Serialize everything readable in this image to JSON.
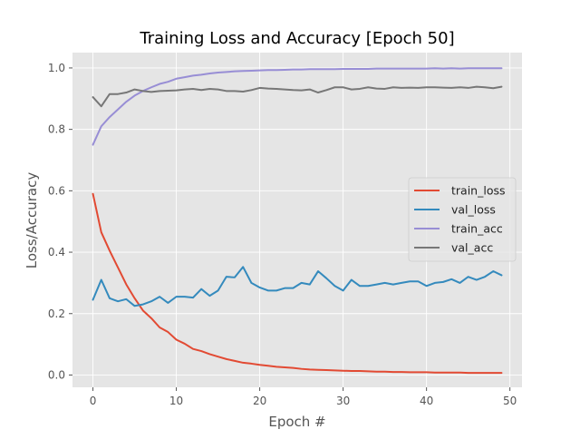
{
  "chart_data": {
    "type": "line",
    "title": "Training Loss and Accuracy [Epoch 50]",
    "xlabel": "Epoch #",
    "ylabel": "Loss/Accuracy",
    "xlim": [
      -2.45,
      51.45
    ],
    "ylim": [
      -0.04,
      1.05
    ],
    "xticks": [
      0,
      10,
      20,
      30,
      40,
      50
    ],
    "xtick_labels": [
      "0",
      "10",
      "20",
      "30",
      "40",
      "50"
    ],
    "yticks": [
      0.0,
      0.2,
      0.4,
      0.6,
      0.8,
      1.0
    ],
    "ytick_labels": [
      "0.0",
      "0.2",
      "0.4",
      "0.6",
      "0.8",
      "1.0"
    ],
    "grid": true,
    "legend_position": "center-right",
    "x": [
      0,
      1,
      2,
      3,
      4,
      5,
      6,
      7,
      8,
      9,
      10,
      11,
      12,
      13,
      14,
      15,
      16,
      17,
      18,
      19,
      20,
      21,
      22,
      23,
      24,
      25,
      26,
      27,
      28,
      29,
      30,
      31,
      32,
      33,
      34,
      35,
      36,
      37,
      38,
      39,
      40,
      41,
      42,
      43,
      44,
      45,
      46,
      47,
      48,
      49
    ],
    "series": [
      {
        "name": "train_loss",
        "color": "#E24A33",
        "values": [
          0.59,
          0.465,
          0.405,
          0.35,
          0.295,
          0.25,
          0.21,
          0.185,
          0.155,
          0.14,
          0.115,
          0.102,
          0.085,
          0.078,
          0.068,
          0.06,
          0.052,
          0.046,
          0.04,
          0.037,
          0.033,
          0.03,
          0.027,
          0.025,
          0.023,
          0.02,
          0.018,
          0.017,
          0.016,
          0.015,
          0.014,
          0.013,
          0.013,
          0.012,
          0.011,
          0.011,
          0.01,
          0.01,
          0.009,
          0.009,
          0.009,
          0.008,
          0.008,
          0.008,
          0.008,
          0.007,
          0.007,
          0.007,
          0.007,
          0.007
        ]
      },
      {
        "name": "val_loss",
        "color": "#348ABD",
        "values": [
          0.245,
          0.31,
          0.25,
          0.24,
          0.247,
          0.225,
          0.23,
          0.24,
          0.255,
          0.235,
          0.255,
          0.255,
          0.252,
          0.28,
          0.258,
          0.275,
          0.32,
          0.318,
          0.352,
          0.3,
          0.285,
          0.275,
          0.275,
          0.283,
          0.283,
          0.3,
          0.295,
          0.338,
          0.315,
          0.29,
          0.275,
          0.31,
          0.29,
          0.29,
          0.295,
          0.3,
          0.295,
          0.3,
          0.305,
          0.305,
          0.29,
          0.3,
          0.303,
          0.312,
          0.3,
          0.32,
          0.31,
          0.32,
          0.338,
          0.325
        ]
      },
      {
        "name": "train_acc",
        "color": "#988ED5",
        "values": [
          0.75,
          0.81,
          0.84,
          0.865,
          0.89,
          0.91,
          0.925,
          0.937,
          0.948,
          0.955,
          0.965,
          0.97,
          0.975,
          0.978,
          0.982,
          0.985,
          0.987,
          0.989,
          0.99,
          0.991,
          0.992,
          0.993,
          0.993,
          0.994,
          0.995,
          0.995,
          0.996,
          0.996,
          0.996,
          0.996,
          0.997,
          0.997,
          0.997,
          0.997,
          0.998,
          0.998,
          0.998,
          0.998,
          0.998,
          0.998,
          0.998,
          0.999,
          0.998,
          0.999,
          0.998,
          0.999,
          0.999,
          0.999,
          0.999,
          0.999
        ]
      },
      {
        "name": "val_acc",
        "color": "#777777",
        "values": [
          0.905,
          0.875,
          0.915,
          0.915,
          0.92,
          0.93,
          0.925,
          0.922,
          0.925,
          0.926,
          0.927,
          0.93,
          0.932,
          0.928,
          0.932,
          0.93,
          0.925,
          0.925,
          0.923,
          0.928,
          0.935,
          0.933,
          0.932,
          0.93,
          0.928,
          0.927,
          0.93,
          0.92,
          0.928,
          0.937,
          0.937,
          0.93,
          0.932,
          0.937,
          0.933,
          0.932,
          0.937,
          0.935,
          0.936,
          0.935,
          0.937,
          0.937,
          0.936,
          0.935,
          0.937,
          0.935,
          0.939,
          0.937,
          0.934,
          0.939
        ]
      }
    ]
  }
}
